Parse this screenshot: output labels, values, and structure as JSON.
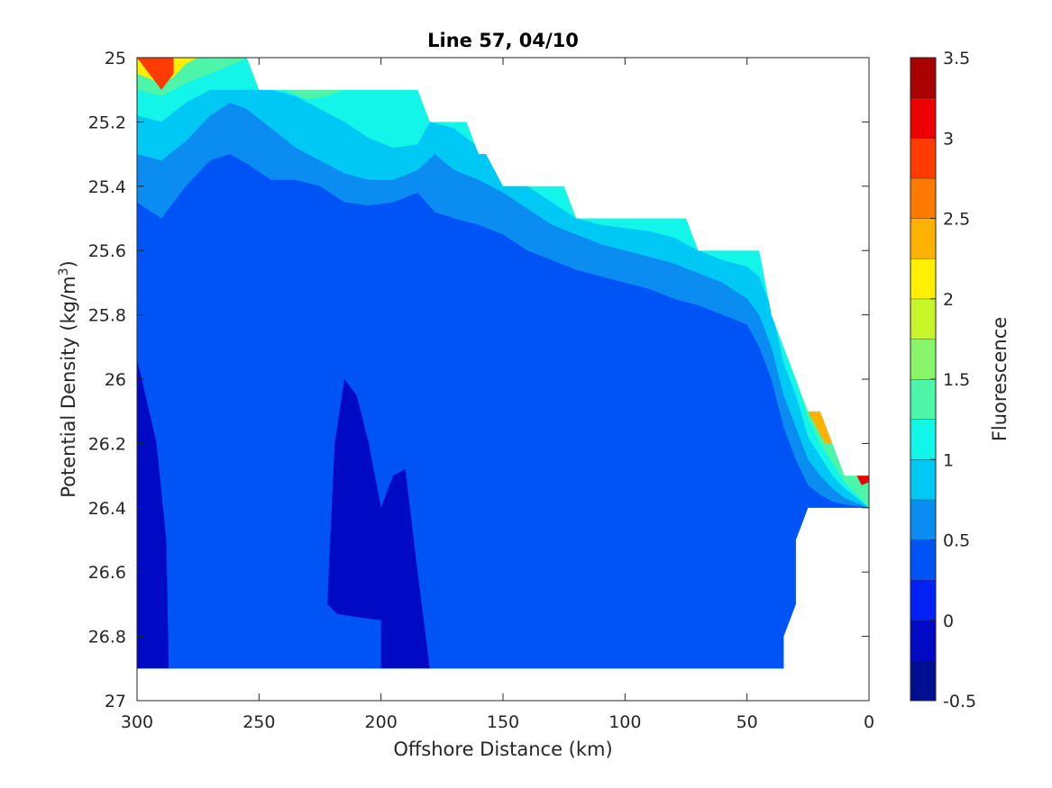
{
  "chart_data": {
    "type": "contour",
    "title": "Line 57, 04/10",
    "xlabel": "Offshore Distance (km)",
    "ylabel_main": "Potential Density (kg/m",
    "ylabel_sup": "3",
    "ylabel_close": ")",
    "colorbar_label": "Fluorescence",
    "x_reversed": true,
    "xlim": [
      0,
      300
    ],
    "ylim": [
      25,
      27
    ],
    "y_reversed": true,
    "x_ticks": [
      300,
      250,
      200,
      150,
      100,
      50,
      0
    ],
    "y_ticks": [
      25,
      25.2,
      25.4,
      25.6,
      25.8,
      26,
      26.2,
      26.4,
      26.6,
      26.8,
      27
    ],
    "y_tick_labels": [
      "25",
      "25.2",
      "25.4",
      "25.6",
      "25.8",
      "26",
      "26.2",
      "26.4",
      "26.6",
      "26.8",
      "27"
    ],
    "colorbar": {
      "range": [
        -0.5,
        3.5
      ],
      "tick_values": [
        -0.5,
        0,
        0.5,
        1,
        1.5,
        2,
        2.5,
        3,
        3.5
      ],
      "tick_labels": [
        "-0.5",
        "0",
        "0.5",
        "1",
        "1.5",
        "2",
        "2.5",
        "3",
        "3.5"
      ],
      "levels": [
        {
          "from": -0.5,
          "to": -0.25,
          "color": "#000f8f"
        },
        {
          "from": -0.25,
          "to": 0,
          "color": "#0009c4"
        },
        {
          "from": 0,
          "to": 0.25,
          "color": "#0022f5"
        },
        {
          "from": 0.25,
          "to": 0.5,
          "color": "#0054f5"
        },
        {
          "from": 0.5,
          "to": 0.75,
          "color": "#0a8cf0"
        },
        {
          "from": 0.75,
          "to": 1,
          "color": "#00c8f5"
        },
        {
          "from": 1,
          "to": 1.25,
          "color": "#12f5e8"
        },
        {
          "from": 1.25,
          "to": 1.5,
          "color": "#4cf5a8"
        },
        {
          "from": 1.5,
          "to": 1.75,
          "color": "#88f56a"
        },
        {
          "from": 1.75,
          "to": 2,
          "color": "#c6f52c"
        },
        {
          "from": 2,
          "to": 2.25,
          "color": "#ffef00"
        },
        {
          "from": 2.25,
          "to": 2.5,
          "color": "#ffb100"
        },
        {
          "from": 2.5,
          "to": 2.75,
          "color": "#ff7a00"
        },
        {
          "from": 2.75,
          "to": 3,
          "color": "#ff3c00"
        },
        {
          "from": 3,
          "to": 3.25,
          "color": "#ee0000"
        },
        {
          "from": 3.25,
          "to": 3.5,
          "color": "#a90000"
        }
      ]
    },
    "data_top_boundary": [
      [
        300,
        25
      ],
      [
        255,
        25
      ],
      [
        250,
        25.1
      ],
      [
        185,
        25.1
      ],
      [
        180,
        25.2
      ],
      [
        165,
        25.2
      ],
      [
        160,
        25.3
      ],
      [
        157,
        25.3
      ],
      [
        150,
        25.4
      ],
      [
        125,
        25.4
      ],
      [
        120,
        25.5
      ],
      [
        75,
        25.5
      ],
      [
        70,
        25.6
      ],
      [
        45,
        25.6
      ],
      [
        40,
        25.8
      ],
      [
        25,
        26.1
      ],
      [
        20,
        26.1
      ],
      [
        10,
        26.3
      ],
      [
        0,
        26.3
      ],
      [
        0,
        26.4
      ],
      [
        25,
        26.4
      ],
      [
        30,
        26.5
      ],
      [
        30,
        26.7
      ],
      [
        35,
        26.8
      ],
      [
        35,
        26.9
      ],
      [
        300,
        26.9
      ]
    ],
    "contour_regions": [
      {
        "level": 0.5,
        "upper_edge": [
          [
            300,
            25.45
          ],
          [
            290,
            25.5
          ],
          [
            280,
            25.4
          ],
          [
            270,
            25.32
          ],
          [
            262,
            25.3
          ],
          [
            255,
            25.33
          ],
          [
            245,
            25.38
          ],
          [
            235,
            25.38
          ],
          [
            225,
            25.4
          ],
          [
            215,
            25.45
          ],
          [
            205,
            25.46
          ],
          [
            195,
            25.45
          ],
          [
            185,
            25.42
          ],
          [
            178,
            25.48
          ],
          [
            170,
            25.5
          ],
          [
            160,
            25.52
          ],
          [
            150,
            25.55
          ],
          [
            140,
            25.6
          ],
          [
            130,
            25.63
          ],
          [
            120,
            25.66
          ],
          [
            110,
            25.68
          ],
          [
            100,
            25.7
          ],
          [
            90,
            25.72
          ],
          [
            80,
            25.75
          ],
          [
            70,
            25.77
          ],
          [
            60,
            25.8
          ],
          [
            50,
            25.83
          ],
          [
            45,
            25.9
          ],
          [
            40,
            26.0
          ],
          [
            35,
            26.15
          ],
          [
            30,
            26.25
          ],
          [
            25,
            26.33
          ],
          [
            20,
            26.36
          ],
          [
            15,
            26.38
          ],
          [
            10,
            26.39
          ],
          [
            0,
            26.4
          ]
        ]
      },
      {
        "level": 0.75,
        "upper_edge": [
          [
            300,
            25.3
          ],
          [
            290,
            25.32
          ],
          [
            280,
            25.26
          ],
          [
            270,
            25.18
          ],
          [
            262,
            25.14
          ],
          [
            255,
            25.16
          ],
          [
            245,
            25.22
          ],
          [
            235,
            25.28
          ],
          [
            225,
            25.32
          ],
          [
            215,
            25.36
          ],
          [
            205,
            25.38
          ],
          [
            195,
            25.38
          ],
          [
            185,
            25.35
          ],
          [
            178,
            25.3
          ],
          [
            170,
            25.35
          ],
          [
            160,
            25.38
          ],
          [
            150,
            25.42
          ],
          [
            140,
            25.47
          ],
          [
            130,
            25.52
          ],
          [
            120,
            25.55
          ],
          [
            110,
            25.58
          ],
          [
            100,
            25.6
          ],
          [
            90,
            25.62
          ],
          [
            80,
            25.64
          ],
          [
            70,
            25.67
          ],
          [
            60,
            25.7
          ],
          [
            50,
            25.75
          ],
          [
            45,
            25.8
          ],
          [
            40,
            25.9
          ],
          [
            35,
            26.05
          ],
          [
            30,
            26.15
          ],
          [
            25,
            26.25
          ],
          [
            20,
            26.3
          ],
          [
            15,
            26.34
          ],
          [
            10,
            26.37
          ],
          [
            0,
            26.4
          ]
        ]
      },
      {
        "level": 1.0,
        "upper_edge": [
          [
            300,
            25.18
          ],
          [
            290,
            25.2
          ],
          [
            280,
            25.14
          ],
          [
            270,
            25.1
          ],
          [
            255,
            25.1
          ],
          [
            245,
            25.1
          ],
          [
            235,
            25.12
          ],
          [
            225,
            25.16
          ],
          [
            215,
            25.2
          ],
          [
            205,
            25.25
          ],
          [
            195,
            25.28
          ],
          [
            185,
            25.27
          ],
          [
            180,
            25.2
          ],
          [
            170,
            25.22
          ],
          [
            160,
            25.28
          ],
          [
            150,
            25.35
          ],
          [
            140,
            25.4
          ],
          [
            130,
            25.45
          ],
          [
            120,
            25.5
          ],
          [
            110,
            25.52
          ],
          [
            100,
            25.53
          ],
          [
            90,
            25.54
          ],
          [
            80,
            25.56
          ],
          [
            70,
            25.6
          ],
          [
            60,
            25.63
          ],
          [
            50,
            25.65
          ],
          [
            45,
            25.68
          ],
          [
            40,
            25.78
          ],
          [
            35,
            25.95
          ],
          [
            30,
            26.05
          ],
          [
            25,
            26.18
          ],
          [
            20,
            26.24
          ],
          [
            15,
            26.3
          ],
          [
            10,
            26.34
          ],
          [
            0,
            26.4
          ]
        ]
      },
      {
        "level": 1.25,
        "upper_edge": [
          [
            300,
            25.1
          ],
          [
            290,
            25.12
          ],
          [
            280,
            25.08
          ],
          [
            270,
            25.05
          ],
          [
            260,
            25.02
          ],
          [
            255,
            25.0
          ],
          [
            250,
            25.1
          ],
          [
            240,
            25.1
          ],
          [
            230,
            25.1
          ],
          [
            220,
            25.1
          ],
          [
            210,
            25.1
          ],
          [
            200,
            25.1
          ],
          [
            190,
            25.1
          ],
          [
            185,
            25.1
          ],
          [
            180,
            25.2
          ],
          [
            165,
            25.2
          ],
          [
            160,
            25.3
          ],
          [
            157,
            25.3
          ],
          [
            150,
            25.4
          ],
          [
            125,
            25.4
          ],
          [
            120,
            25.5
          ],
          [
            100,
            25.5
          ],
          [
            90,
            25.5
          ],
          [
            75,
            25.5
          ],
          [
            70,
            25.6
          ],
          [
            50,
            25.6
          ],
          [
            45,
            25.6
          ],
          [
            40,
            25.78
          ],
          [
            35,
            25.9
          ],
          [
            30,
            26.0
          ],
          [
            25,
            26.12
          ],
          [
            20,
            26.2
          ],
          [
            15,
            26.26
          ],
          [
            10,
            26.32
          ],
          [
            0,
            26.4
          ]
        ]
      },
      {
        "level": 2.0,
        "upper_edge": [
          [
            300,
            25.05
          ],
          [
            290,
            25.08
          ],
          [
            285,
            25.06
          ],
          [
            280,
            25.02
          ],
          [
            275,
            25.0
          ],
          [
            300,
            25.0
          ]
        ]
      },
      {
        "level": 2.75,
        "upper_edge": [
          [
            300,
            25.0
          ],
          [
            295,
            25.05
          ],
          [
            290,
            25.1
          ],
          [
            285,
            25.05
          ],
          [
            285,
            25.0
          ]
        ]
      }
    ],
    "deep_minimum_regions": [
      {
        "level": -0.25,
        "outline": [
          [
            300,
            25.94
          ],
          [
            298,
            26.0
          ],
          [
            292,
            26.2
          ],
          [
            288,
            26.5
          ],
          [
            287,
            26.9
          ],
          [
            300,
            26.9
          ]
        ]
      },
      {
        "level": -0.25,
        "outline": [
          [
            222,
            26.7
          ],
          [
            219,
            26.2
          ],
          [
            215,
            26.0
          ],
          [
            210,
            26.05
          ],
          [
            205,
            26.2
          ],
          [
            200,
            26.4
          ],
          [
            195,
            26.3
          ],
          [
            190,
            26.28
          ],
          [
            185,
            26.6
          ],
          [
            180,
            26.9
          ],
          [
            200,
            26.9
          ],
          [
            200,
            26.75
          ],
          [
            210,
            26.74
          ],
          [
            218,
            26.73
          ]
        ]
      }
    ],
    "surface_patches": [
      {
        "level": 1.25,
        "polygon": [
          [
            240,
            25.1
          ],
          [
            230,
            25.13
          ],
          [
            222,
            25.12
          ],
          [
            215,
            25.1
          ]
        ]
      },
      {
        "level": 1.75,
        "polygon": [
          [
            125,
            25.4
          ],
          [
            120,
            25.45
          ],
          [
            115,
            25.42
          ],
          [
            118,
            25.4
          ]
        ]
      },
      {
        "level": 2.25,
        "polygon": [
          [
            25,
            26.1
          ],
          [
            20,
            26.1
          ],
          [
            15,
            26.2
          ],
          [
            18,
            26.2
          ]
        ]
      },
      {
        "level": 3.0,
        "polygon": [
          [
            5,
            26.3
          ],
          [
            0,
            26.3
          ],
          [
            0,
            26.32
          ],
          [
            3,
            26.33
          ]
        ]
      }
    ]
  }
}
